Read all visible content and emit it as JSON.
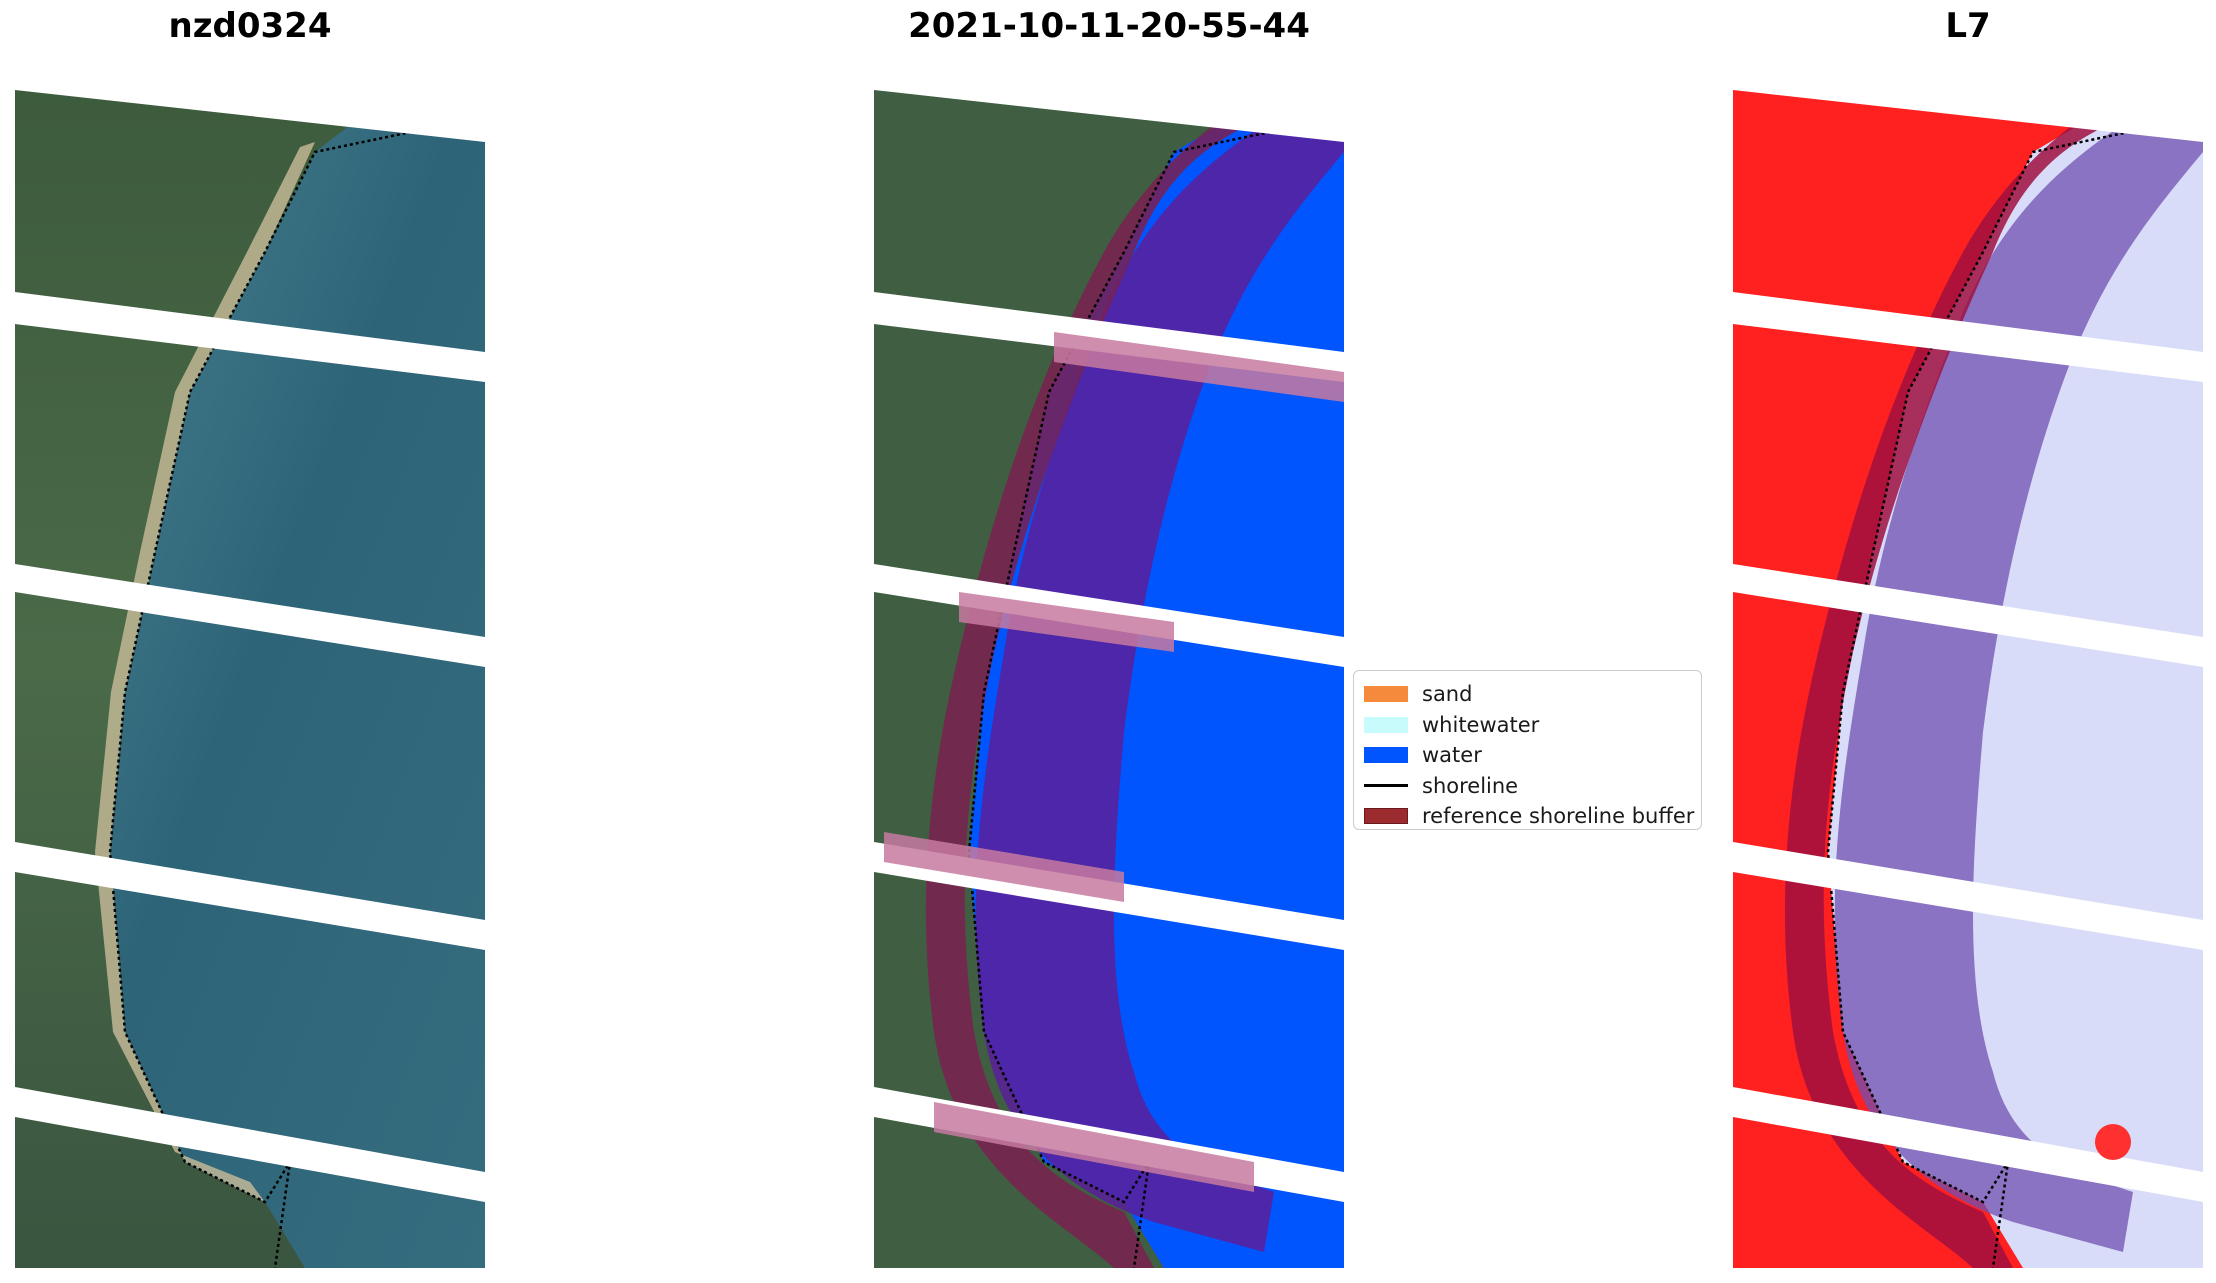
{
  "panels": [
    {
      "title": "nzd0324",
      "kind": "rgb"
    },
    {
      "title": "2021-10-11-20-55-44",
      "kind": "classified"
    },
    {
      "title": "L7",
      "kind": "index"
    }
  ],
  "legend": {
    "items": [
      {
        "label": "sand",
        "color": "#f68a3c",
        "type": "patch"
      },
      {
        "label": "whitewater",
        "color": "#c8fbfb",
        "type": "patch"
      },
      {
        "label": "water",
        "color": "#0055ff",
        "type": "patch"
      },
      {
        "label": "shoreline",
        "color": "#000000",
        "type": "line"
      },
      {
        "label": "reference shoreline buffer",
        "color": "#9b2b2f",
        "type": "patch"
      }
    ]
  },
  "colors": {
    "land": "#3d5a3a",
    "ocean": "#2f6577",
    "classified_water": "#0055ff",
    "index_land": "#ff2020",
    "index_water": "#d8dcf8",
    "buffer": "#7a1a4a",
    "shoreline": "#000000",
    "scanline_gap": "#ffffff"
  }
}
